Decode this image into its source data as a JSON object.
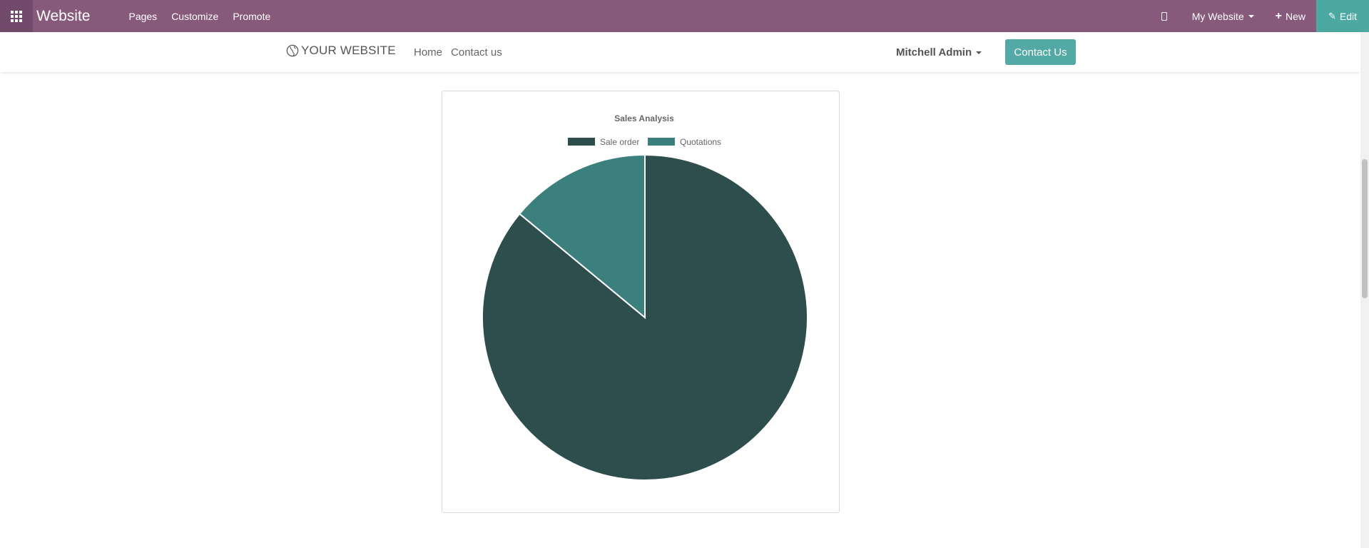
{
  "topbar": {
    "brand": "Website",
    "menu": [
      "Pages",
      "Customize",
      "Promote"
    ],
    "website_selector": "My Website",
    "new_label": "New",
    "edit_label": "Edit"
  },
  "header": {
    "logo_text": "YOUR WEBSITE",
    "nav": [
      "Home",
      "Contact us"
    ],
    "user": "Mitchell Admin",
    "cta_label": "Contact Us"
  },
  "colors": {
    "topbar": "#875a7b",
    "edit_button": "#4ba9a2",
    "cta_button": "#52a9a5",
    "sale_order": "#2e4e4d",
    "quotations": "#3b807d"
  },
  "chart_data": {
    "type": "pie",
    "title": "Sales Analysis",
    "legend_position": "top-center",
    "categories": [
      "Sale order",
      "Quotations"
    ],
    "values": [
      86,
      14
    ],
    "colors": [
      "#2e4e4d",
      "#3b807d"
    ]
  }
}
